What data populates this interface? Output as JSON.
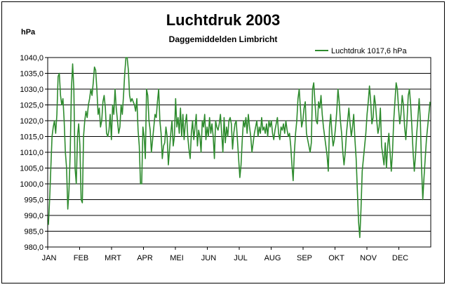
{
  "chart_data": {
    "type": "line",
    "title": "Luchtdruk 2003",
    "subtitle": "Daggemiddelden Limbricht",
    "ylabel": "hPa",
    "ylim": [
      980,
      1040
    ],
    "yticks": [
      "980,0",
      "985,0",
      "990,0",
      "995,0",
      "1000,0",
      "1005,0",
      "1010,0",
      "1015,0",
      "1020,0",
      "1025,0",
      "1030,0",
      "1035,0",
      "1040,0"
    ],
    "months": [
      "JAN",
      "FEB",
      "MRT",
      "APR",
      "MEI",
      "JUN",
      "JUL",
      "AUG",
      "SEP",
      "OKT",
      "NOV",
      "DEC"
    ],
    "legend_position": "top-right",
    "grid": "horizontal",
    "series": [
      {
        "name": "Luchtdruk 1017,6 hPa",
        "color": "#2e8b2e",
        "x_unit": "day of year",
        "values": [
          987,
          995,
          1005,
          1015,
          1018,
          1020,
          1016,
          1022,
          1034,
          1035,
          1028,
          1025,
          1027,
          1020,
          1010,
          1005,
          992,
          998,
          1010,
          1030,
          1038,
          1030,
          1005,
          1000,
          1015,
          1019,
          1012,
          995,
          994,
          1015,
          1020,
          1023,
          1021,
          1025,
          1027,
          1030,
          1028,
          1032,
          1037,
          1036,
          1030,
          1022,
          1024,
          1018,
          1020,
          1026,
          1028,
          1024,
          1016,
          1015,
          1017,
          1022,
          1014,
          1025,
          1022,
          1030,
          1024,
          1020,
          1016,
          1018,
          1025,
          1022,
          1028,
          1035,
          1040,
          1040,
          1036,
          1028,
          1026,
          1027,
          1026,
          1025,
          1023,
          1027,
          1017,
          1012,
          1000,
          1000,
          1018,
          1015,
          1008,
          1030,
          1028,
          1020,
          1017,
          1010,
          1014,
          1018,
          1022,
          1021,
          1026,
          1030,
          1020,
          1016,
          1008,
          1012,
          1013,
          1018,
          1015,
          1006,
          1011,
          1016,
          1020,
          1012,
          1015,
          1027,
          1018,
          1021,
          1016,
          1024,
          1015,
          1022,
          1014,
          1019,
          1022,
          1015,
          1011,
          1008,
          1016,
          1020,
          1014,
          1018,
          1022,
          1012,
          1017,
          1015,
          1010,
          1020,
          1018,
          1022,
          1014,
          1018,
          1015,
          1021,
          1016,
          1019,
          1015,
          1008,
          1020,
          1018,
          1017,
          1019,
          1022,
          1016,
          1010,
          1021,
          1013,
          1018,
          1015,
          1020,
          1021,
          1019,
          1011,
          1016,
          1019,
          1020,
          1014,
          1008,
          1002,
          1006,
          1014,
          1020,
          1018,
          1021,
          1016,
          1022,
          1018,
          1015,
          1010,
          1013,
          1016,
          1018,
          1020,
          1015,
          1018,
          1016,
          1021,
          1017,
          1018,
          1016,
          1019,
          1015,
          1020,
          1018,
          1020,
          1016,
          1014,
          1017,
          1019,
          1021,
          1016,
          1014,
          1018,
          1017,
          1019,
          1016,
          1020,
          1017,
          1015,
          1016,
          1012,
          1006,
          1001,
          1010,
          1016,
          1020,
          1027,
          1030,
          1024,
          1018,
          1020,
          1024,
          1026,
          1016,
          1014,
          1012,
          1010,
          1013,
          1030,
          1032,
          1026,
          1020,
          1019,
          1026,
          1024,
          1028,
          1022,
          1018,
          1015,
          1012,
          1009,
          1004,
          1018,
          1022,
          1016,
          1012,
          1014,
          1018,
          1023,
          1030,
          1026,
          1020,
          1016,
          1010,
          1006,
          1010,
          1016,
          1020,
          1024,
          1019,
          1015,
          1018,
          1022,
          1014,
          1008,
          998,
          988,
          983,
          992,
          1004,
          1008,
          1012,
          1016,
          1022,
          1026,
          1031,
          1026,
          1019,
          1021,
          1028,
          1025,
          1020,
          1016,
          1018,
          1024,
          1012,
          1009,
          1006,
          1013,
          1005,
          1012,
          1016,
          1010,
          1004,
          1010,
          1020,
          1026,
          1032,
          1030,
          1024,
          1019,
          1022,
          1028,
          1025,
          1018,
          1014,
          1020,
          1028,
          1030,
          1025,
          1018,
          1010,
          1004,
          1009,
          1016,
          1021,
          1027,
          1020,
          1005,
          995,
          1002,
          1008,
          1014,
          1018,
          1022,
          1026
        ]
      }
    ]
  }
}
